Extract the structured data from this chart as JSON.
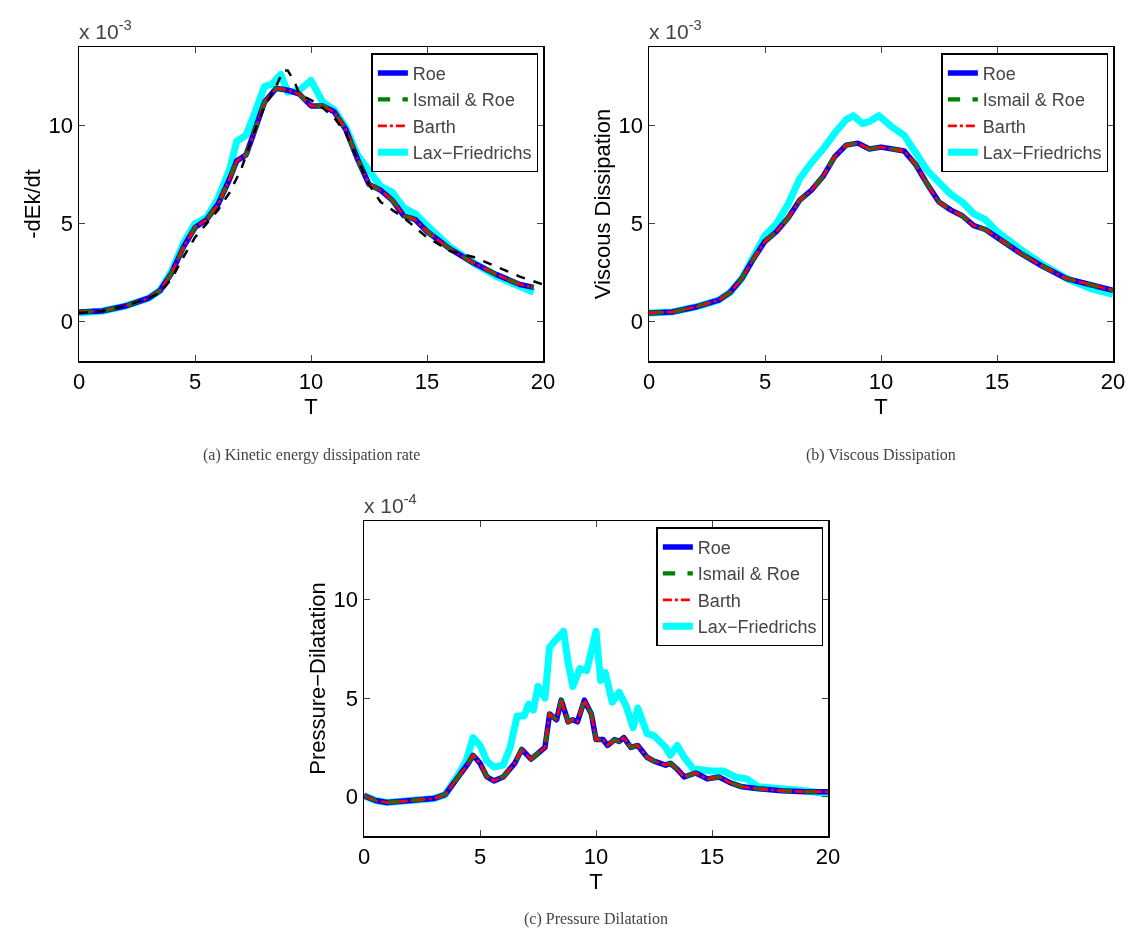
{
  "chart_data": [
    {
      "type": "line",
      "ylabel": "-dEk/dt",
      "xlabel": "T",
      "xlim": [
        0,
        20
      ],
      "xticks": [
        0,
        5,
        10,
        15,
        20
      ],
      "ylim": [
        -2,
        14
      ],
      "yticks": [
        0,
        5,
        10
      ],
      "grid": false,
      "legend": "top right",
      "annotations": [
        "x 10$^{-3}$",
        "(a) Kinetic energy dissipation rate"
      ],
      "series": [
        {
          "name": "Roe",
          "color": "#0000ff",
          "line_style": "solid",
          "x": [
            0,
            1,
            2,
            3,
            3.5,
            4,
            4.5,
            5,
            5.5,
            6,
            6.5,
            6.8,
            7.2,
            7.5,
            8,
            8.5,
            9,
            9.5,
            10,
            10.5,
            11,
            11.5,
            12,
            12.5,
            13,
            13.5,
            14,
            14.5,
            15,
            16,
            17,
            18,
            19,
            19.6
          ],
          "values": [
            0.5,
            0.55,
            0.8,
            1.2,
            1.6,
            2.5,
            3.8,
            4.8,
            5.2,
            6.0,
            7.3,
            8.2,
            8.5,
            9.5,
            11.2,
            11.9,
            11.8,
            11.6,
            11.0,
            11.0,
            10.7,
            9.8,
            8.3,
            7.0,
            6.7,
            6.2,
            5.4,
            5.2,
            4.6,
            3.7,
            3.0,
            2.4,
            1.9,
            1.75
          ]
        },
        {
          "name": "Ismail & Roe",
          "color": "#008000",
          "line_style": "dashed",
          "x": [
            0,
            1,
            2,
            3,
            3.5,
            4,
            4.5,
            5,
            5.5,
            6,
            6.5,
            6.8,
            7.2,
            7.5,
            8,
            8.5,
            9,
            9.5,
            10,
            10.5,
            11,
            11.5,
            12,
            12.5,
            13,
            13.5,
            14,
            14.5,
            15,
            16,
            17,
            18,
            19,
            19.6
          ],
          "values": [
            0.5,
            0.55,
            0.8,
            1.2,
            1.6,
            2.5,
            3.8,
            4.8,
            5.2,
            6.0,
            7.3,
            8.2,
            8.5,
            9.5,
            11.2,
            11.9,
            11.8,
            11.6,
            11.0,
            11.0,
            10.7,
            9.8,
            8.3,
            7.0,
            6.7,
            6.2,
            5.4,
            5.2,
            4.6,
            3.7,
            3.0,
            2.4,
            1.9,
            1.75
          ]
        },
        {
          "name": "Barth",
          "color": "#ff0000",
          "line_style": "dashdot",
          "x": [
            0,
            1,
            2,
            3,
            3.5,
            4,
            4.5,
            5,
            5.5,
            6,
            6.5,
            6.8,
            7.2,
            7.5,
            8,
            8.5,
            9,
            9.5,
            10,
            10.5,
            11,
            11.5,
            12,
            12.5,
            13,
            13.5,
            14,
            14.5,
            15,
            16,
            17,
            18,
            19,
            19.6
          ],
          "values": [
            0.5,
            0.55,
            0.8,
            1.2,
            1.6,
            2.5,
            3.8,
            4.8,
            5.2,
            6.0,
            7.3,
            8.2,
            8.5,
            9.5,
            11.2,
            11.9,
            11.8,
            11.6,
            11.0,
            11.0,
            10.7,
            9.8,
            8.3,
            7.0,
            6.7,
            6.2,
            5.4,
            5.2,
            4.6,
            3.7,
            3.0,
            2.4,
            1.9,
            1.75
          ]
        },
        {
          "name": "Lax−Friedrichs",
          "color": "#00ffff",
          "line_style": "solid",
          "x": [
            0,
            1,
            2,
            3,
            3.5,
            4,
            4.5,
            5,
            5.5,
            6,
            6.5,
            6.8,
            7.2,
            7.5,
            8,
            8.3,
            8.7,
            9,
            9.5,
            10,
            10.5,
            11,
            11.5,
            12,
            12.5,
            13,
            13.5,
            14,
            14.5,
            15,
            16,
            17,
            18,
            19,
            19.6
          ],
          "values": [
            0.45,
            0.55,
            0.8,
            1.2,
            1.6,
            2.6,
            4.0,
            5.0,
            5.3,
            6.3,
            7.8,
            9.2,
            9.5,
            10.4,
            12.0,
            12.1,
            12.6,
            11.7,
            11.8,
            12.3,
            11.2,
            10.8,
            9.9,
            8.5,
            7.7,
            6.9,
            6.6,
            5.8,
            5.5,
            4.9,
            3.8,
            3.0,
            2.3,
            1.8,
            1.5
          ]
        },
        {
          "color": "#000000",
          "line_style": "dashed",
          "x": [
            0,
            1,
            2,
            3,
            3.5,
            4,
            4.5,
            5,
            5.5,
            6,
            6.5,
            7,
            7.5,
            8,
            8.5,
            8.8,
            9,
            9.3,
            9.5,
            10,
            10.5,
            11,
            11.5,
            12,
            12.5,
            13,
            13.5,
            14,
            14.5,
            15,
            16,
            17,
            18,
            19,
            20
          ],
          "values": [
            0.45,
            0.55,
            0.8,
            1.2,
            1.5,
            2.2,
            3.3,
            4.3,
            5.0,
            5.7,
            6.6,
            7.8,
            9.5,
            11.0,
            12.0,
            12.8,
            12.8,
            12.2,
            11.6,
            11.3,
            10.9,
            10.4,
            9.6,
            8.3,
            7.0,
            6.1,
            5.7,
            5.3,
            4.8,
            4.3,
            3.6,
            3.3,
            2.8,
            2.3,
            1.9
          ]
        }
      ]
    },
    {
      "type": "line",
      "ylabel": "Viscous Dissipation",
      "xlabel": "T",
      "xlim": [
        0,
        20
      ],
      "xticks": [
        0,
        5,
        10,
        15,
        20
      ],
      "ylim": [
        -2,
        14
      ],
      "yticks": [
        0,
        5,
        10
      ],
      "grid": false,
      "legend": "top right",
      "annotations": [
        "x 10$^{-3}$",
        "(b) Viscous Dissipation"
      ],
      "series": [
        {
          "name": "Roe",
          "color": "#0000ff",
          "line_style": "solid",
          "x": [
            0,
            1,
            2,
            3,
            3.5,
            4,
            4.5,
            5,
            5.5,
            6,
            6.5,
            7,
            7.5,
            8,
            8.5,
            9,
            9.5,
            10,
            10.5,
            11,
            11.5,
            12,
            12.5,
            13,
            13.5,
            14,
            14.5,
            15,
            16,
            17,
            18,
            19,
            20
          ],
          "values": [
            0.45,
            0.5,
            0.75,
            1.1,
            1.5,
            2.2,
            3.2,
            4.1,
            4.6,
            5.3,
            6.2,
            6.7,
            7.4,
            8.4,
            9.0,
            9.1,
            8.8,
            8.9,
            8.8,
            8.7,
            8.0,
            7.0,
            6.1,
            5.7,
            5.4,
            4.9,
            4.7,
            4.3,
            3.5,
            2.8,
            2.2,
            1.9,
            1.6
          ]
        },
        {
          "name": "Ismail & Roe",
          "color": "#008000",
          "line_style": "dashed",
          "x": [
            0,
            1,
            2,
            3,
            3.5,
            4,
            4.5,
            5,
            5.5,
            6,
            6.5,
            7,
            7.5,
            8,
            8.5,
            9,
            9.5,
            10,
            10.5,
            11,
            11.5,
            12,
            12.5,
            13,
            13.5,
            14,
            14.5,
            15,
            16,
            17,
            18,
            19,
            20
          ],
          "values": [
            0.45,
            0.5,
            0.75,
            1.1,
            1.5,
            2.2,
            3.2,
            4.1,
            4.6,
            5.3,
            6.2,
            6.7,
            7.4,
            8.4,
            9.0,
            9.1,
            8.8,
            8.9,
            8.8,
            8.7,
            8.0,
            7.0,
            6.1,
            5.7,
            5.4,
            4.9,
            4.7,
            4.3,
            3.5,
            2.8,
            2.2,
            1.9,
            1.6
          ]
        },
        {
          "name": "Barth",
          "color": "#ff0000",
          "line_style": "dashdot",
          "x": [
            0,
            1,
            2,
            3,
            3.5,
            4,
            4.5,
            5,
            5.5,
            6,
            6.5,
            7,
            7.5,
            8,
            8.5,
            9,
            9.5,
            10,
            10.5,
            11,
            11.5,
            12,
            12.5,
            13,
            13.5,
            14,
            14.5,
            15,
            16,
            17,
            18,
            19,
            20
          ],
          "values": [
            0.45,
            0.5,
            0.75,
            1.1,
            1.5,
            2.2,
            3.2,
            4.1,
            4.6,
            5.3,
            6.2,
            6.7,
            7.4,
            8.4,
            9.0,
            9.1,
            8.8,
            8.9,
            8.8,
            8.7,
            8.0,
            7.0,
            6.1,
            5.7,
            5.4,
            4.9,
            4.7,
            4.3,
            3.5,
            2.8,
            2.2,
            1.9,
            1.6
          ]
        },
        {
          "name": "Lax−Friedrichs",
          "color": "#00ffff",
          "line_style": "solid",
          "x": [
            0,
            1,
            2,
            3,
            3.5,
            4,
            4.5,
            5,
            5.5,
            6,
            6.5,
            7,
            7.5,
            8,
            8.5,
            8.8,
            9.2,
            9.5,
            9.9,
            10.5,
            11,
            11.5,
            12,
            12.5,
            13,
            13.5,
            14,
            14.5,
            15,
            16,
            17,
            18,
            19,
            20
          ],
          "values": [
            0.45,
            0.5,
            0.75,
            1.1,
            1.5,
            2.2,
            3.3,
            4.4,
            5.0,
            6.0,
            7.3,
            8.1,
            8.8,
            9.6,
            10.3,
            10.5,
            10.1,
            10.2,
            10.5,
            9.9,
            9.5,
            8.6,
            7.7,
            7.1,
            6.5,
            6.1,
            5.5,
            5.2,
            4.6,
            3.7,
            2.9,
            2.2,
            1.7,
            1.4
          ]
        }
      ]
    },
    {
      "type": "line",
      "ylabel": "Pressure−Dilatation",
      "xlabel": "T",
      "xlim": [
        0,
        20
      ],
      "xticks": [
        0,
        5,
        10,
        15,
        20
      ],
      "ylim": [
        -2,
        14
      ],
      "yticks": [
        0,
        5,
        10
      ],
      "grid": false,
      "legend": "top right",
      "annotations": [
        "x 10$^{-4}$",
        "(c) Pressure Dilatation"
      ],
      "series": [
        {
          "name": "Roe",
          "color": "#0000ff",
          "line_style": "solid",
          "x": [
            0,
            0.5,
            1,
            2,
            3,
            3.5,
            4,
            4.5,
            4.7,
            5,
            5.3,
            5.6,
            6,
            6.5,
            6.8,
            7.2,
            7.5,
            7.8,
            8,
            8.3,
            8.5,
            8.8,
            9,
            9.2,
            9.5,
            9.8,
            10,
            10.3,
            10.5,
            10.8,
            11,
            11.2,
            11.5,
            11.8,
            12.2,
            12.5,
            13,
            13.2,
            13.5,
            13.8,
            14.3,
            14.8,
            15.3,
            15.8,
            16.3,
            17,
            18,
            19,
            20
          ],
          "values": [
            0.05,
            -0.2,
            -0.3,
            -0.2,
            -0.1,
            0.1,
            0.9,
            1.7,
            2.1,
            1.7,
            1.0,
            0.8,
            1.0,
            1.7,
            2.4,
            1.9,
            2.2,
            2.5,
            4.2,
            3.9,
            4.9,
            3.8,
            3.9,
            3.8,
            4.9,
            4.2,
            2.9,
            2.9,
            2.6,
            2.9,
            2.8,
            3.0,
            2.5,
            2.6,
            2.0,
            1.8,
            1.6,
            1.7,
            1.4,
            1.0,
            1.2,
            0.9,
            1.0,
            0.7,
            0.5,
            0.4,
            0.3,
            0.25,
            0.25
          ]
        },
        {
          "name": "Ismail & Roe",
          "color": "#008000",
          "line_style": "dashed",
          "x": [
            0,
            0.5,
            1,
            2,
            3,
            3.5,
            4,
            4.5,
            4.7,
            5,
            5.3,
            5.6,
            6,
            6.5,
            6.8,
            7.2,
            7.5,
            7.8,
            8,
            8.3,
            8.5,
            8.8,
            9,
            9.2,
            9.5,
            9.8,
            10,
            10.3,
            10.5,
            10.8,
            11,
            11.2,
            11.5,
            11.8,
            12.2,
            12.5,
            13,
            13.2,
            13.5,
            13.8,
            14.3,
            14.8,
            15.3,
            15.8,
            16.3,
            17,
            18,
            19,
            20
          ],
          "values": [
            0.05,
            -0.2,
            -0.3,
            -0.2,
            -0.1,
            0.1,
            0.9,
            1.7,
            2.1,
            1.7,
            1.0,
            0.8,
            1.0,
            1.7,
            2.4,
            1.9,
            2.2,
            2.5,
            4.2,
            3.9,
            4.9,
            3.8,
            3.9,
            3.8,
            4.9,
            4.2,
            2.9,
            2.9,
            2.6,
            2.9,
            2.8,
            3.0,
            2.5,
            2.6,
            2.0,
            1.8,
            1.6,
            1.7,
            1.4,
            1.0,
            1.2,
            0.9,
            1.0,
            0.7,
            0.5,
            0.4,
            0.3,
            0.25,
            0.25
          ]
        },
        {
          "name": "Barth",
          "color": "#ff0000",
          "line_style": "dashdot",
          "x": [
            0,
            0.5,
            1,
            2,
            3,
            3.5,
            4,
            4.5,
            4.7,
            5,
            5.3,
            5.6,
            6,
            6.5,
            6.8,
            7.2,
            7.5,
            7.8,
            8,
            8.3,
            8.5,
            8.8,
            9,
            9.2,
            9.5,
            9.8,
            10,
            10.3,
            10.5,
            10.8,
            11,
            11.2,
            11.5,
            11.8,
            12.2,
            12.5,
            13,
            13.2,
            13.5,
            13.8,
            14.3,
            14.8,
            15.3,
            15.8,
            16.3,
            17,
            18,
            19,
            20
          ],
          "values": [
            0.05,
            -0.2,
            -0.3,
            -0.2,
            -0.1,
            0.1,
            0.9,
            1.7,
            2.1,
            1.7,
            1.0,
            0.8,
            1.0,
            1.7,
            2.4,
            1.9,
            2.2,
            2.5,
            4.2,
            3.9,
            4.9,
            3.8,
            3.9,
            3.8,
            4.9,
            4.2,
            2.9,
            2.9,
            2.6,
            2.9,
            2.8,
            3.0,
            2.5,
            2.6,
            2.0,
            1.8,
            1.6,
            1.7,
            1.4,
            1.0,
            1.2,
            0.9,
            1.0,
            0.7,
            0.5,
            0.4,
            0.3,
            0.25,
            0.25
          ]
        },
        {
          "name": "Lax−Friedrichs",
          "color": "#00ffff",
          "line_style": "solid",
          "x": [
            0,
            0.5,
            1,
            2,
            3,
            3.5,
            4,
            4.4,
            4.7,
            5,
            5.3,
            5.6,
            6,
            6.3,
            6.6,
            6.9,
            7.1,
            7.3,
            7.5,
            7.8,
            8,
            8.3,
            8.6,
            8.8,
            9,
            9.3,
            9.6,
            10,
            10.2,
            10.4,
            10.7,
            11,
            11.3,
            11.6,
            11.8,
            12.2,
            12.5,
            13,
            13.2,
            13.5,
            13.8,
            14.2,
            15,
            15.5,
            16,
            16.5,
            17,
            18,
            19,
            20
          ],
          "values": [
            0.05,
            -0.2,
            -0.3,
            -0.2,
            -0.1,
            0.1,
            1.0,
            1.8,
            3.0,
            2.6,
            1.8,
            1.5,
            1.6,
            2.5,
            4.1,
            4.1,
            4.7,
            4.4,
            5.6,
            5.0,
            7.6,
            8.0,
            8.4,
            6.8,
            5.6,
            6.5,
            6.4,
            8.4,
            5.9,
            6.3,
            4.8,
            5.3,
            4.6,
            3.5,
            4.5,
            3.2,
            3.1,
            2.5,
            2.1,
            2.6,
            2.0,
            1.4,
            1.3,
            1.3,
            1.0,
            0.9,
            0.5,
            0.4,
            0.3,
            0.15
          ]
        }
      ]
    }
  ]
}
